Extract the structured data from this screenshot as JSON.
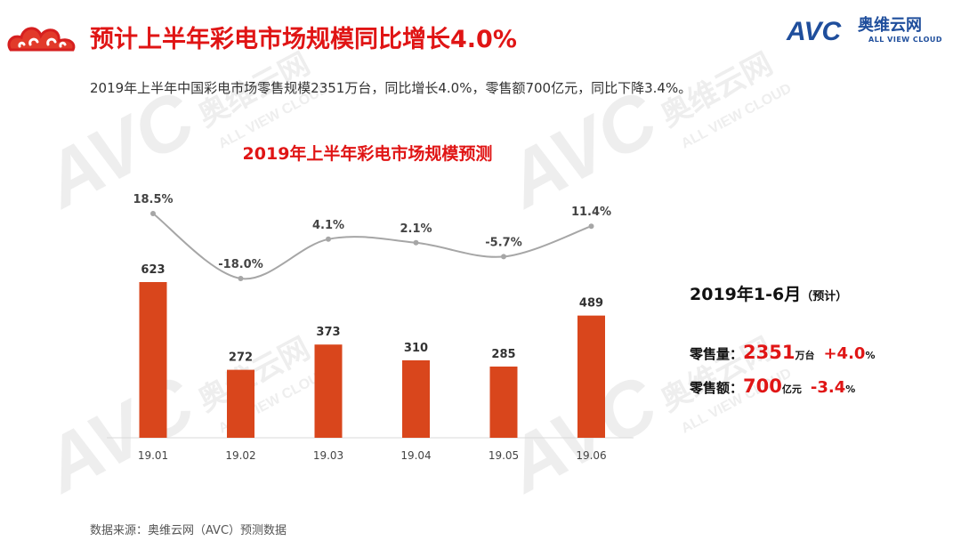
{
  "header": {
    "title": "预计上半年彩电市场规模同比增长4.0%",
    "brand_name": "AVC",
    "brand_cn": "奥维云网",
    "brand_en": "ALL VIEW CLOUD"
  },
  "subtitle": "2019年上半年中国彩电市场零售规模2351万台，同比增长4.0%，零售额700亿元，同比下降3.4%。",
  "watermark": {
    "brand": "AVC",
    "cn": "奥维云网",
    "en": "ALL VIEW CLOUD"
  },
  "summary": {
    "title": "2019年1-6月",
    "title_note": "（预计）",
    "volume_label": "零售量：",
    "volume_value": "2351",
    "volume_unit": "万台",
    "volume_change": "+4.0",
    "volume_change_unit": "%",
    "revenue_label": "零售额：",
    "revenue_value": "700",
    "revenue_unit": "亿元",
    "revenue_change": "-3.4",
    "revenue_change_unit": "%"
  },
  "footer": "数据来源：奥维云网（AVC）预测数据",
  "colors": {
    "title_red": "#e01515",
    "bar": "#d9461c",
    "line": "#a6a6a6",
    "brand_blue": "#1f4e9c"
  },
  "chart_data": {
    "type": "bar",
    "title": "2019年上半年彩电市场规模预测",
    "categories": [
      "19.01",
      "19.02",
      "19.03",
      "19.04",
      "19.05",
      "19.06"
    ],
    "series": [
      {
        "values": [
          623,
          272,
          373,
          310,
          285,
          489
        ]
      },
      {
        "values": [
          18.5,
          -18.0,
          4.1,
          2.1,
          -5.7,
          11.4
        ],
        "labels": [
          "18.5%",
          "-18.0%",
          "4.1%",
          "2.1%",
          "-5.7%",
          "11.4%"
        ]
      }
    ],
    "line_range": [
      -25,
      25
    ],
    "bar_range": [
      0,
      700
    ],
    "grid": false,
    "legend": "none"
  }
}
